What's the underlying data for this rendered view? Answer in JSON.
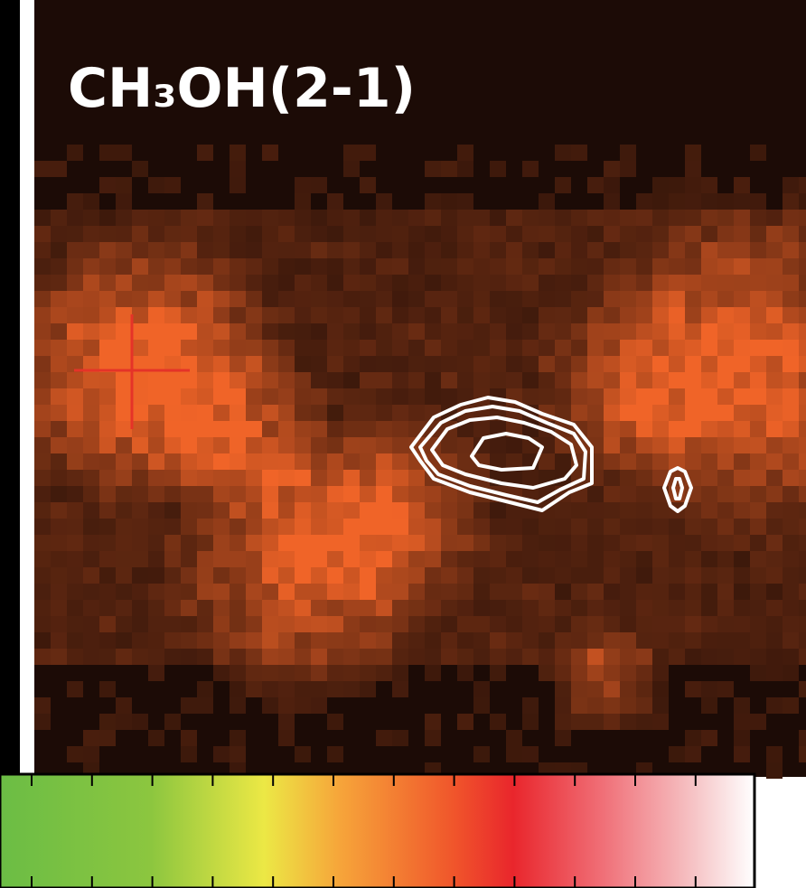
{
  "title": "CH₃OH(2-1)"
}
